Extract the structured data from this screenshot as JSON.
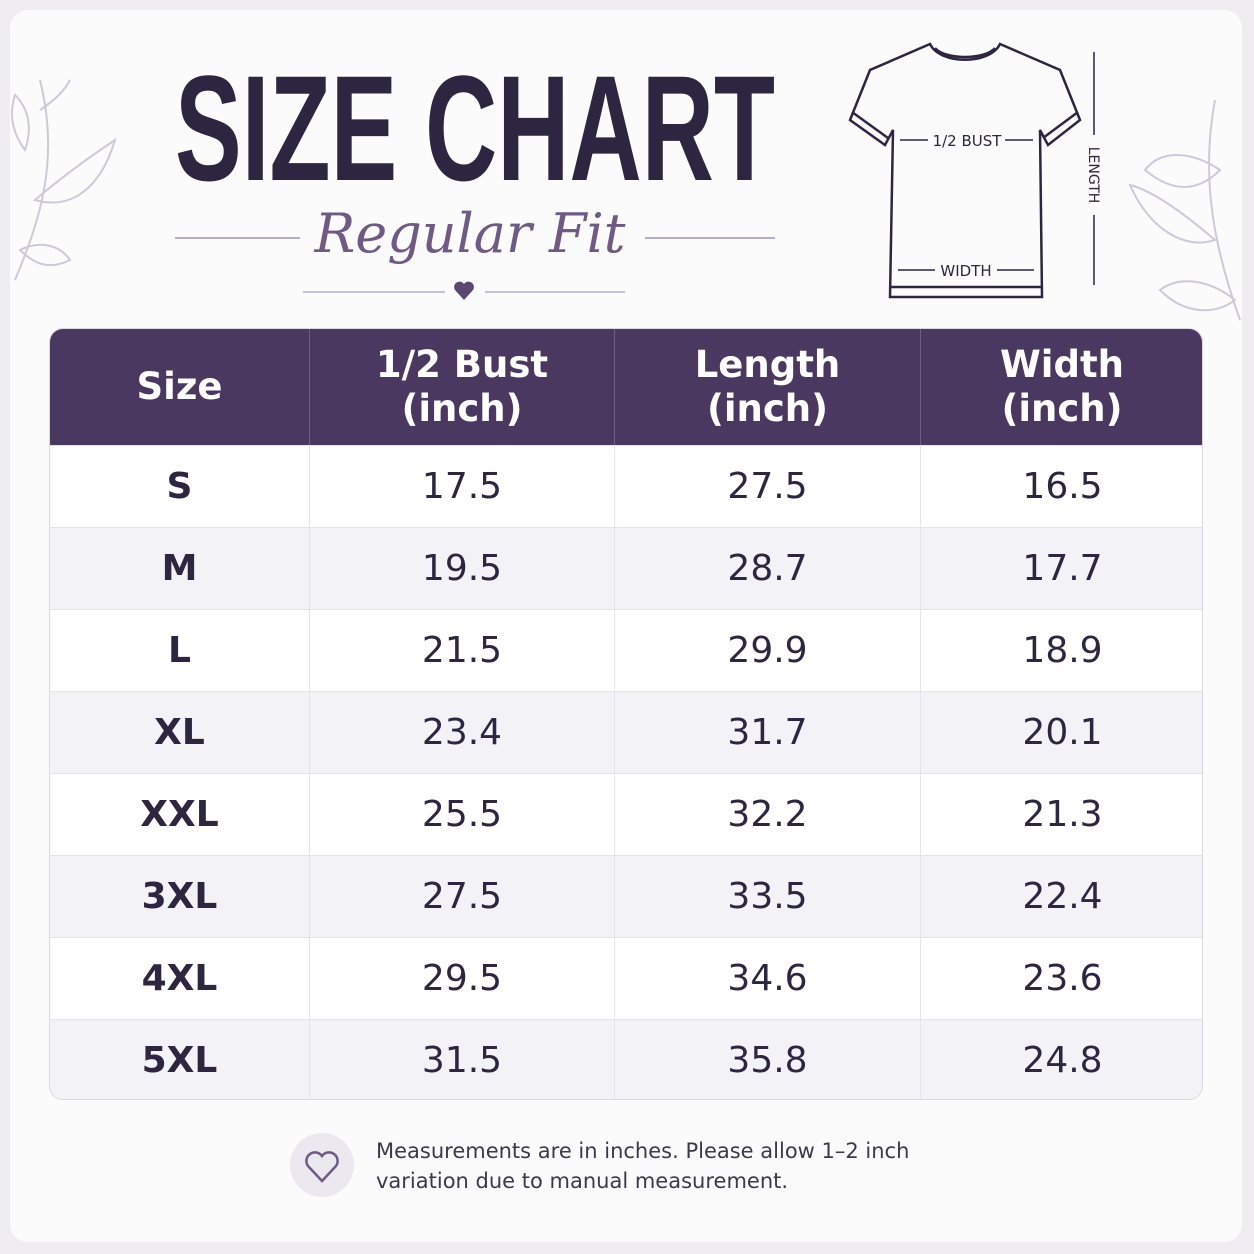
{
  "header": {
    "title": "SIZE CHART",
    "subtitle": "Regular Fit"
  },
  "diagram": {
    "bust": "1/2 BUST",
    "width": "WIDTH",
    "length": "LENGTH"
  },
  "table": {
    "columns": [
      [
        "Size"
      ],
      [
        "1/2 Bust",
        "(inch)"
      ],
      [
        "Length",
        "(inch)"
      ],
      [
        "Width",
        "(inch)"
      ]
    ],
    "rows": [
      [
        "S",
        "17.5",
        "27.5",
        "16.5"
      ],
      [
        "M",
        "19.5",
        "28.7",
        "17.7"
      ],
      [
        "L",
        "21.5",
        "29.9",
        "18.9"
      ],
      [
        "XL",
        "23.4",
        "31.7",
        "20.1"
      ],
      [
        "XXL",
        "25.5",
        "32.2",
        "21.3"
      ],
      [
        "3XL",
        "27.5",
        "33.5",
        "22.4"
      ],
      [
        "4XL",
        "29.5",
        "34.6",
        "23.6"
      ],
      [
        "5XL",
        "31.5",
        "35.8",
        "24.8"
      ]
    ]
  },
  "footer": {
    "note": [
      "Measurements are in inches. Please allow 1–2 inch",
      "variation due to manual measurement."
    ]
  }
}
